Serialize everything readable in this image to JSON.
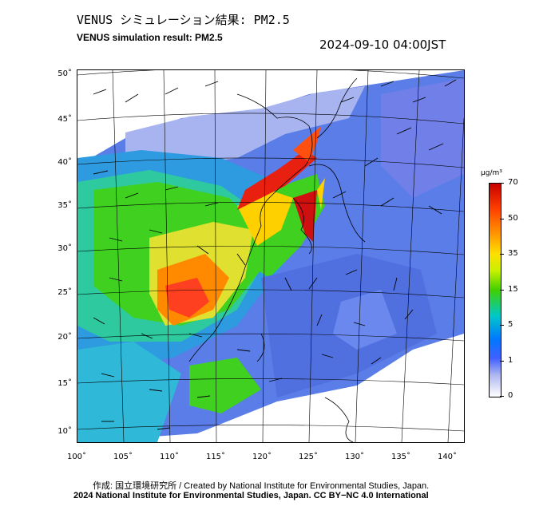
{
  "title_ja": "VENUS シミュレーション結果: PM2.5",
  "title_en": "VENUS simulation result: PM2.5",
  "timestamp": "2024-09-10 04:00JST",
  "map": {
    "lat_labels": [
      "50˚",
      "45˚",
      "40˚",
      "35˚",
      "30˚",
      "25˚",
      "20˚",
      "15˚",
      "10˚"
    ],
    "lon_labels": [
      "100˚",
      "105˚",
      "110˚",
      "115˚",
      "120˚",
      "125˚",
      "130˚",
      "135˚",
      "140˚"
    ]
  },
  "colorbar": {
    "unit": "μg/m³",
    "labels": [
      "70",
      "50",
      "35",
      "15",
      "5",
      "1",
      "0"
    ],
    "colors": [
      "#c80000",
      "#ff4000",
      "#ff8a00",
      "#ffe000",
      "#40d000",
      "#00c8c8",
      "#0078ff",
      "#4060ff",
      "#b0b8f0",
      "#ffffff"
    ]
  },
  "credits": {
    "line1": "作成: 国立環境研究所 / Created by National Institute for Environmental Studies, Japan.",
    "line2": "2024 National Institute for Environmental Studies, Japan. CC BY−NC 4.0 International"
  }
}
